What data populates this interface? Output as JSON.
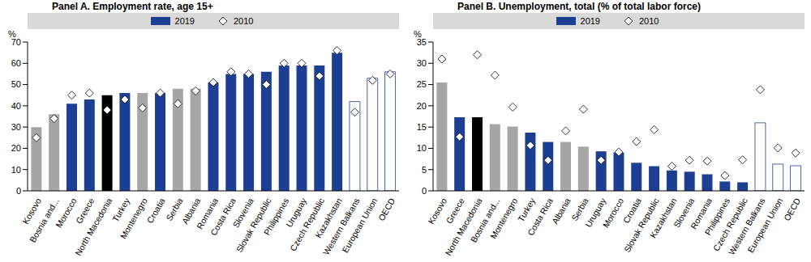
{
  "chart_data": [
    {
      "type": "bar",
      "title": "Panel A. Employment rate, age 15+",
      "ylabel": "%",
      "categories": [
        "Kosovo",
        "Bosnia and...",
        "Morocco",
        "Greece",
        "North Macedonia",
        "Turkey",
        "Montenegro",
        "Croatia",
        "Serbia",
        "Albania",
        "Romania",
        "Costa Rica",
        "Slovenia",
        "Slovak Republic",
        "Philippines",
        "Uruguay",
        "Czech Republic",
        "Kazakhstan",
        "Western Balkans",
        "European Union",
        "OECD"
      ],
      "series": [
        {
          "name": "2019",
          "type": "bar",
          "color": "#1c3f94",
          "colors": [
            "#a6a6a6",
            "#a6a6a6",
            "#1c3f94",
            "#1c3f94",
            "#000000",
            "#1c3f94",
            "#a6a6a6",
            "#1c3f94",
            "#a6a6a6",
            "#a6a6a6",
            "#1c3f94",
            "#1c3f94",
            "#1c3f94",
            "#1c3f94",
            "#1c3f94",
            "#1c3f94",
            "#1c3f94",
            "#1c3f94",
            "#ffffff",
            "#ffffff",
            "#ffffff"
          ],
          "values": [
            30,
            36,
            41,
            43,
            45,
            46,
            46,
            46,
            48,
            48,
            51,
            55,
            55,
            56,
            59,
            59,
            59,
            65,
            42,
            53,
            56
          ]
        },
        {
          "name": "2010",
          "type": "scatter",
          "marker": "diamond",
          "color": "#ffffff",
          "values": [
            25,
            34,
            45,
            46,
            38,
            43,
            39,
            46,
            41,
            47,
            51,
            56,
            55,
            50,
            60,
            60,
            54,
            66,
            37,
            52,
            55
          ]
        }
      ],
      "ylim": [
        0,
        70
      ],
      "yticks": [
        0,
        10,
        20,
        30,
        40,
        50,
        60,
        70
      ],
      "grid": false,
      "legend": "top"
    },
    {
      "type": "bar",
      "title": "Panel B. Unemployment, total (% of total labor force)",
      "ylabel": "%",
      "categories": [
        "Kosovo",
        "Greece",
        "North Macedonia",
        "Bosnia and...",
        "Montenegro",
        "Turkey",
        "Costa Rica",
        "Albania",
        "Serbia",
        "Uruguay",
        "Morocco",
        "Croatia",
        "Slovak Republic",
        "Kazakhstan",
        "Slovenia",
        "Romania",
        "Philippines",
        "Czech Republic",
        "Western Balkans",
        "European Union",
        "OECD"
      ],
      "series": [
        {
          "name": "2019",
          "type": "bar",
          "color": "#1c3f94",
          "colors": [
            "#a6a6a6",
            "#1c3f94",
            "#000000",
            "#a6a6a6",
            "#a6a6a6",
            "#1c3f94",
            "#1c3f94",
            "#a6a6a6",
            "#a6a6a6",
            "#1c3f94",
            "#1c3f94",
            "#1c3f94",
            "#1c3f94",
            "#1c3f94",
            "#1c3f94",
            "#1c3f94",
            "#1c3f94",
            "#1c3f94",
            "#ffffff",
            "#ffffff",
            "#ffffff"
          ],
          "values": [
            25.5,
            17.3,
            17.3,
            15.7,
            15.1,
            13.7,
            11.5,
            11.5,
            10.4,
            9.3,
            9.0,
            6.6,
            5.8,
            4.8,
            4.5,
            3.9,
            2.2,
            2.0,
            16.0,
            6.3,
            5.9
          ]
        },
        {
          "name": "2010",
          "type": "scatter",
          "marker": "diamond",
          "color": "#ffffff",
          "values": [
            31,
            12.7,
            32,
            27.2,
            19.7,
            10.7,
            7.2,
            14.1,
            19.2,
            7.2,
            9.1,
            11.6,
            14.4,
            5.8,
            7.2,
            7.0,
            3.6,
            7.3,
            23.8,
            10.1,
            8.9
          ]
        }
      ],
      "ylim": [
        0,
        35
      ],
      "yticks": [
        0,
        5,
        10,
        15,
        20,
        25,
        30,
        35
      ],
      "grid": false,
      "legend": "top"
    }
  ]
}
